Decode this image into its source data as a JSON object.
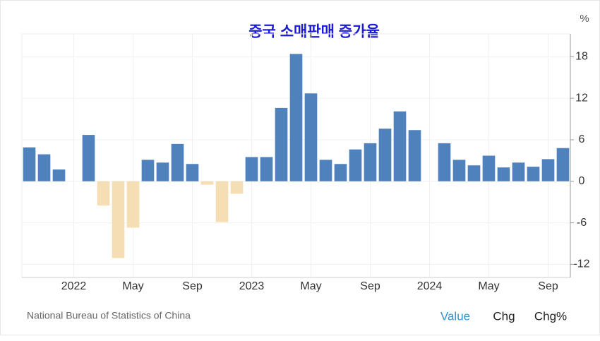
{
  "chart_data": {
    "type": "bar",
    "title": "중국 소매판매 증가율",
    "unit": "%",
    "source": "National Bureau of Statistics of China",
    "categories": [
      null,
      null,
      null,
      "2022",
      null,
      null,
      null,
      "May",
      null,
      null,
      null,
      "Sep",
      null,
      null,
      null,
      "2023",
      null,
      null,
      null,
      "May",
      null,
      null,
      null,
      "Sep",
      null,
      null,
      null,
      "2024",
      null,
      null,
      null,
      "May",
      null,
      null,
      null,
      "Sep",
      null
    ],
    "values": [
      4.9,
      3.9,
      1.7,
      null,
      6.7,
      -3.5,
      -11.1,
      -6.7,
      3.1,
      2.7,
      5.4,
      2.5,
      -0.5,
      -5.9,
      -1.8,
      3.5,
      3.5,
      10.6,
      18.4,
      12.7,
      3.1,
      2.5,
      4.6,
      5.5,
      7.6,
      10.1,
      7.4,
      null,
      5.5,
      3.1,
      2.3,
      3.7,
      2.0,
      2.7,
      2.1,
      3.2,
      4.8
    ],
    "color": "#4f81bd",
    "negative_color": "#f5deb3",
    "ylim": [
      -13.9,
      21.3
    ],
    "yticks": [
      -12,
      -6,
      0,
      6,
      12,
      18
    ],
    "grid": true,
    "buttons": [
      "Value",
      "Chg",
      "Chg%"
    ]
  }
}
